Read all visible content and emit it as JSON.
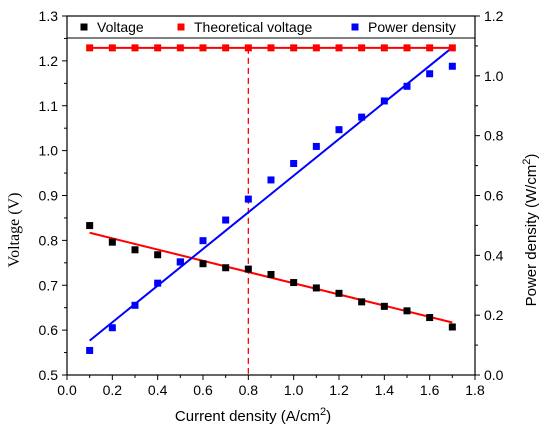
{
  "chart_data": {
    "type": "scatter",
    "xlabel": "Current density (A/cm",
    "xlabel_sup": "2",
    "xlabel_end": ")",
    "ylabel_left": "Voltage (V)",
    "ylabel_right": "Power density (W/cm",
    "ylabel_right_sup": "2",
    "ylabel_right_end": ")",
    "xlim": [
      0.0,
      1.8
    ],
    "ylim_left": [
      0.5,
      1.3
    ],
    "ylim_right": [
      0.0,
      1.2
    ],
    "x_ticks": [
      "0.0",
      "0.2",
      "0.4",
      "0.6",
      "0.8",
      "1.0",
      "1.2",
      "1.4",
      "1.6",
      "1.8"
    ],
    "y_left_ticks": [
      "0.5",
      "0.6",
      "0.7",
      "0.8",
      "0.9",
      "1.0",
      "1.1",
      "1.2",
      "1.3"
    ],
    "y_right_ticks": [
      "0.0",
      "0.2",
      "0.4",
      "0.6",
      "0.8",
      "1.0",
      "1.2"
    ],
    "legend": [
      "Voltage",
      "Theoretical voltage",
      "Power density"
    ],
    "legend_placement": "top",
    "reference_line_x": 0.8,
    "colors": {
      "voltage": "#000000",
      "theoretical": "#ff0000",
      "power": "#0000ff",
      "voltage_fit": "#ff0000",
      "power_fit": "#0000ff",
      "reference": "#ff0000"
    },
    "series": [
      {
        "name": "Voltage",
        "axis": "left",
        "x": [
          0.1,
          0.2,
          0.3,
          0.4,
          0.5,
          0.6,
          0.7,
          0.8,
          0.9,
          1.0,
          1.1,
          1.2,
          1.3,
          1.4,
          1.5,
          1.6,
          1.7
        ],
        "y": [
          0.833,
          0.796,
          0.779,
          0.768,
          0.752,
          0.748,
          0.739,
          0.736,
          0.724,
          0.706,
          0.694,
          0.682,
          0.663,
          0.653,
          0.643,
          0.628,
          0.607
        ]
      },
      {
        "name": "Theoretical voltage",
        "axis": "left",
        "x": [
          0.1,
          0.2,
          0.3,
          0.4,
          0.5,
          0.6,
          0.7,
          0.8,
          0.9,
          1.0,
          1.1,
          1.2,
          1.3,
          1.4,
          1.5,
          1.6,
          1.7
        ],
        "y": [
          1.229,
          1.229,
          1.229,
          1.229,
          1.229,
          1.229,
          1.229,
          1.229,
          1.229,
          1.229,
          1.229,
          1.229,
          1.229,
          1.229,
          1.229,
          1.229,
          1.229
        ]
      },
      {
        "name": "Power density",
        "axis": "right",
        "x": [
          0.1,
          0.2,
          0.3,
          0.4,
          0.5,
          0.6,
          0.7,
          0.8,
          0.9,
          1.0,
          1.1,
          1.2,
          1.3,
          1.4,
          1.5,
          1.6,
          1.7
        ],
        "y": [
          0.082,
          0.158,
          0.233,
          0.307,
          0.378,
          0.449,
          0.518,
          0.588,
          0.652,
          0.707,
          0.764,
          0.82,
          0.862,
          0.916,
          0.965,
          1.007,
          1.032
        ]
      }
    ],
    "fits": [
      {
        "series": "Voltage",
        "axis": "left",
        "x": [
          0.1,
          1.7
        ],
        "y": [
          0.817,
          0.617
        ]
      },
      {
        "series": "Theoretical voltage",
        "axis": "left",
        "x": [
          0.1,
          1.7
        ],
        "y": [
          1.229,
          1.229
        ]
      },
      {
        "series": "Power density",
        "axis": "right",
        "x": [
          0.1,
          1.7
        ],
        "y": [
          0.115,
          1.095
        ]
      }
    ]
  }
}
